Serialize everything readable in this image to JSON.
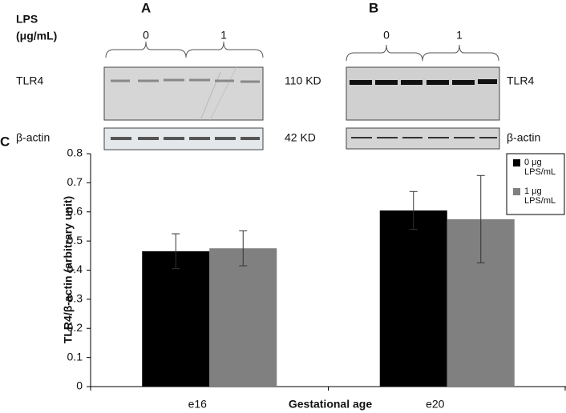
{
  "figure": {
    "lps_label": "LPS",
    "lps_unit": "(μg/mL)",
    "panel_a": "A",
    "panel_b": "B",
    "panel_c": "C",
    "a_dose_0": "0",
    "a_dose_1": "1",
    "b_dose_0": "0",
    "b_dose_1": "1",
    "a_tlr4": "TLR4",
    "a_actin": "β-actin",
    "tlr4_size": "110 KD",
    "actin_size": "42 KD",
    "b_tlr4": "TLR4",
    "b_actin": "β-actin"
  },
  "chart_data": {
    "type": "bar",
    "y_label": "TLR4/β-actin (arbitrary unit)",
    "x_label": "Gestational age",
    "categories": [
      "e16",
      "e20"
    ],
    "series": [
      {
        "name": "0 μg LPS/mL",
        "color": "#000000",
        "values": [
          0.465,
          0.605
        ],
        "errors": [
          0.06,
          0.065
        ]
      },
      {
        "name": "1 μg LPS/mL",
        "color": "#808080",
        "values": [
          0.475,
          0.575
        ],
        "errors": [
          0.06,
          0.15
        ]
      }
    ],
    "ylim": [
      0,
      0.8
    ],
    "yticks": [
      0,
      0.1,
      0.2,
      0.3,
      0.4,
      0.5,
      0.6,
      0.7,
      0.8
    ]
  }
}
